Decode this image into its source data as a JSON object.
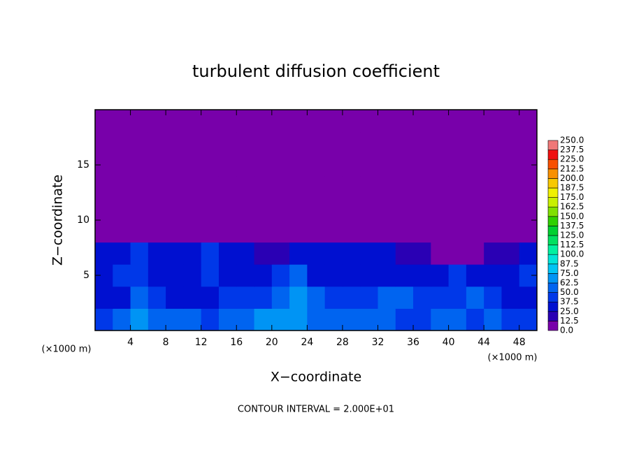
{
  "chart_data": {
    "type": "heatmap",
    "title": "turbulent diffusion coefficient",
    "x_label": "X−coordinate",
    "y_label": "Z−coordinate",
    "x_unit_left": "(×1000 m)",
    "x_unit_right": "(×1000 m)",
    "footnote": "CONTOUR INTERVAL = 2.000E+01",
    "xlim": [
      0,
      50
    ],
    "ylim": [
      0,
      20
    ],
    "xticks": [
      4,
      8,
      12,
      16,
      20,
      24,
      28,
      32,
      36,
      40,
      44,
      48
    ],
    "yticks": [
      5,
      10,
      15
    ],
    "x": [
      1,
      3,
      5,
      7,
      9,
      11,
      13,
      15,
      17,
      19,
      21,
      23,
      25,
      27,
      29,
      31,
      33,
      35,
      37,
      39,
      41,
      43,
      45,
      47,
      49
    ],
    "y": [
      1,
      3,
      5,
      7,
      9,
      11,
      13,
      15,
      17,
      19
    ],
    "z": [
      [
        40,
        50,
        65,
        60,
        55,
        50,
        45,
        55,
        60,
        70,
        65,
        70,
        60,
        55,
        60,
        55,
        50,
        45,
        40,
        50,
        55,
        45,
        50,
        45,
        40
      ],
      [
        30,
        35,
        55,
        40,
        30,
        30,
        35,
        45,
        40,
        45,
        50,
        65,
        55,
        40,
        45,
        40,
        50,
        55,
        45,
        40,
        45,
        50,
        40,
        35,
        30
      ],
      [
        35,
        40,
        40,
        30,
        30,
        35,
        40,
        35,
        30,
        35,
        40,
        50,
        35,
        30,
        30,
        25,
        25,
        30,
        30,
        35,
        40,
        30,
        30,
        35,
        40
      ],
      [
        30,
        35,
        40,
        35,
        30,
        35,
        40,
        30,
        25,
        20,
        20,
        25,
        35,
        35,
        30,
        30,
        25,
        20,
        15,
        10,
        10,
        10,
        15,
        20,
        30
      ],
      [
        5,
        5,
        5,
        3,
        2,
        1,
        1,
        0,
        0,
        0,
        0,
        0,
        0,
        3,
        5,
        3,
        0,
        0,
        0,
        0,
        0,
        0,
        0,
        0,
        0
      ],
      [
        0,
        0,
        0,
        0,
        0,
        0,
        0,
        0,
        0,
        0,
        0,
        0,
        0,
        0,
        0,
        0,
        0,
        0,
        0,
        0,
        0,
        0,
        0,
        0,
        0
      ],
      [
        0,
        0,
        0,
        0,
        0,
        0,
        0,
        0,
        0,
        0,
        0,
        0,
        0,
        0,
        0,
        0,
        0,
        0,
        0,
        0,
        0,
        0,
        0,
        0,
        0
      ],
      [
        0,
        0,
        0,
        0,
        0,
        0,
        0,
        0,
        0,
        0,
        0,
        0,
        0,
        0,
        0,
        0,
        0,
        0,
        0,
        0,
        0,
        0,
        0,
        0,
        0
      ],
      [
        0,
        0,
        0,
        0,
        0,
        0,
        0,
        0,
        0,
        0,
        0,
        0,
        0,
        0,
        0,
        0,
        0,
        0,
        0,
        0,
        0,
        0,
        0,
        0,
        0
      ],
      [
        0,
        0,
        0,
        0,
        0,
        0,
        0,
        0,
        0,
        0,
        0,
        0,
        0,
        0,
        0,
        0,
        0,
        0,
        0,
        0,
        0,
        0,
        0,
        0,
        0
      ]
    ],
    "levels": [
      {
        "value": 0,
        "label": "0.0"
      },
      12.5,
      {
        "value": 25,
        "label": "25.0"
      },
      37.5,
      {
        "value": 50,
        "label": "50.0"
      },
      62.5,
      {
        "value": 75,
        "label": "75.0"
      },
      87.5,
      {
        "value": 100,
        "label": "100.0"
      },
      112.5,
      {
        "value": 125,
        "label": "125.0"
      },
      137.5,
      {
        "value": 150,
        "label": "150.0"
      },
      162.5,
      {
        "value": 175,
        "label": "175.0"
      },
      187.5,
      {
        "value": 200,
        "label": "200.0"
      },
      212.5,
      {
        "value": 225,
        "label": "225.0"
      },
      237.5,
      {
        "value": 250,
        "label": "250.0"
      }
    ],
    "colors": [
      "#7800aa",
      "#2a00b4",
      "#0010d0",
      "#0038e8",
      "#0064f0",
      "#0094f4",
      "#00c4f4",
      "#00e4d8",
      "#00f0a0",
      "#00e060",
      "#00d030",
      "#30d000",
      "#80e000",
      "#c8f000",
      "#f0f000",
      "#f8c800",
      "#f89000",
      "#f85000",
      "#f01010",
      "#f07878"
    ]
  }
}
